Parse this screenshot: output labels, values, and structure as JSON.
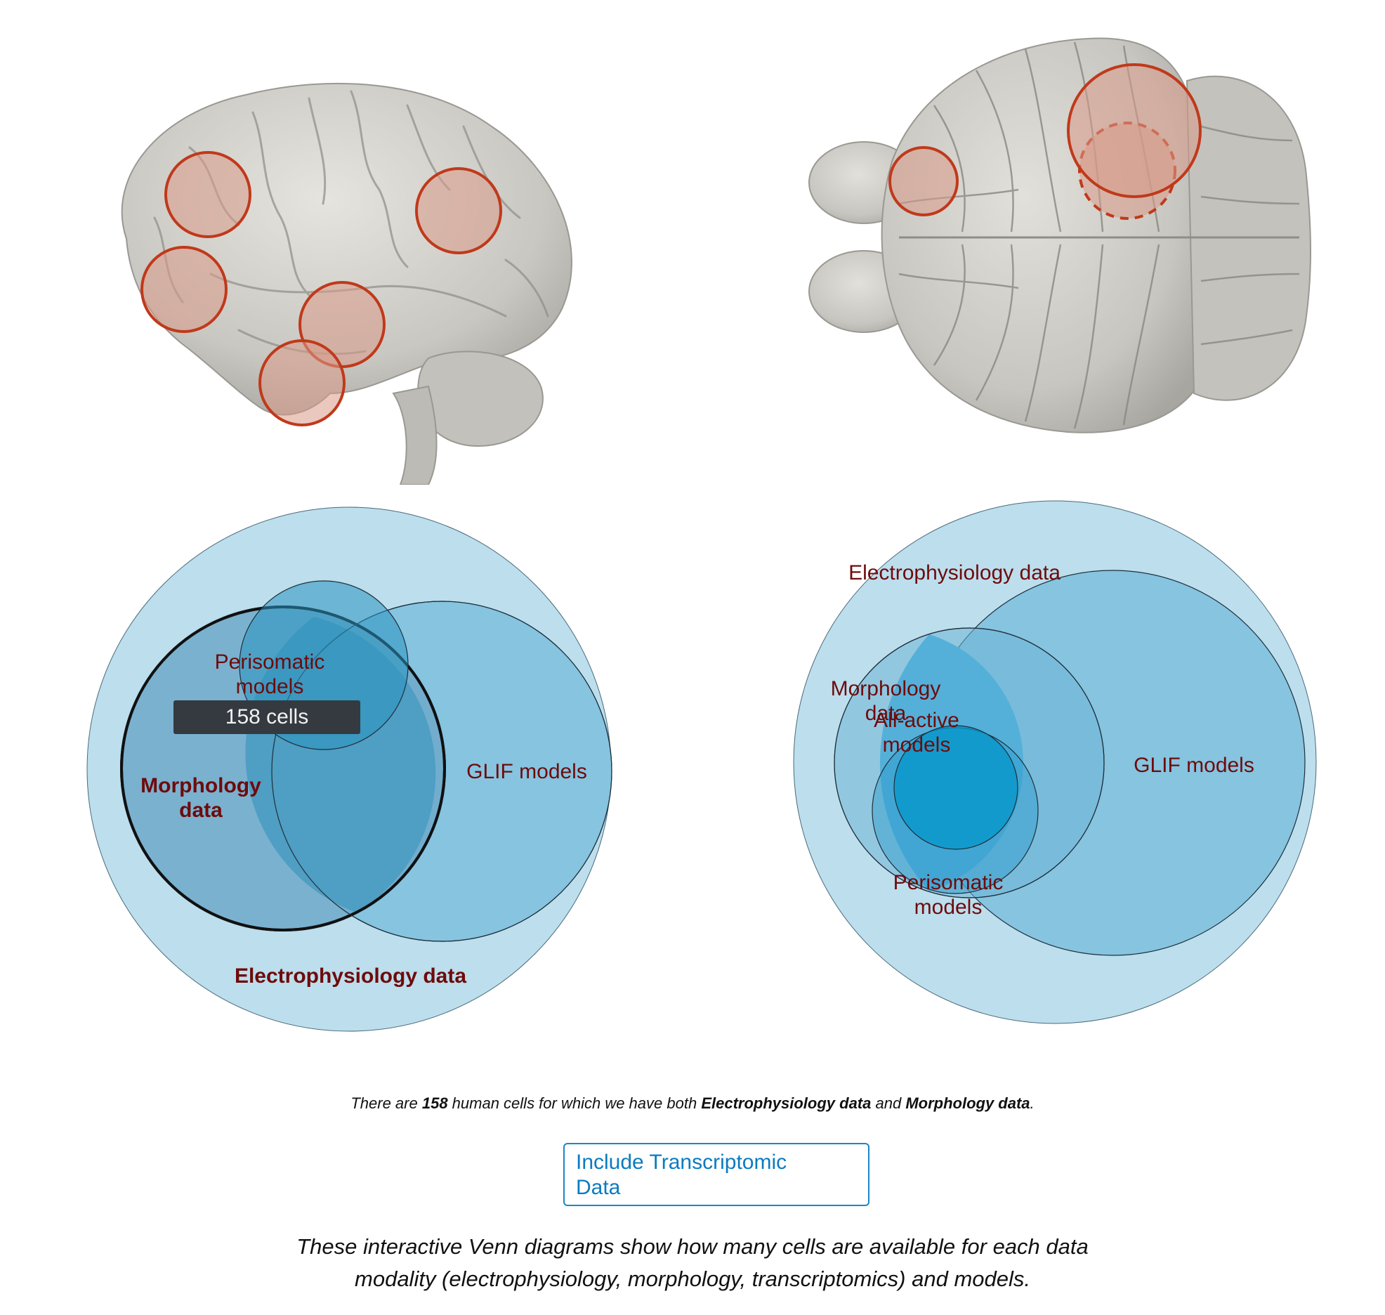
{
  "human_venn": {
    "labels": {
      "perisomatic": [
        "Perisomatic",
        "models"
      ],
      "morphology": [
        "Morphology",
        "data"
      ],
      "glif": "GLIF models",
      "ephys": "Electrophysiology data"
    },
    "tooltip": "158 cells"
  },
  "mouse_venn": {
    "labels": {
      "ephys": "Electrophysiology data",
      "morphology": [
        "Morphology",
        "data"
      ],
      "all_active": [
        "All-active",
        "models"
      ],
      "glif": "GLIF models",
      "perisomatic": [
        "Perisomatic",
        "models"
      ]
    }
  },
  "summary": {
    "prefix": "There are ",
    "count": "158",
    "middle": " human cells for which we have both ",
    "term1": "Electrophysiology data",
    "and": " and ",
    "term2": "Morphology data",
    "suffix": "."
  },
  "toggle_button": {
    "line1": "Include Transcriptomic",
    "line2": "Data"
  },
  "caption": {
    "line1": "These interactive Venn diagrams show how many cells are available for each data",
    "line2": "modality (electrophysiology, morphology, transcriptomics) and models."
  },
  "colors": {
    "venn_outer": "#bcdeed",
    "venn_mid": "#86c4e0",
    "venn_deep": "#2a94c0",
    "label": "#6e0b0b",
    "brain": "#c8c6c0",
    "region_circle": "#c0391b",
    "button_border": "#1a86c7"
  },
  "icons": {
    "human_brain": "human-brain-illustration",
    "mouse_brain": "mouse-brain-illustration"
  }
}
